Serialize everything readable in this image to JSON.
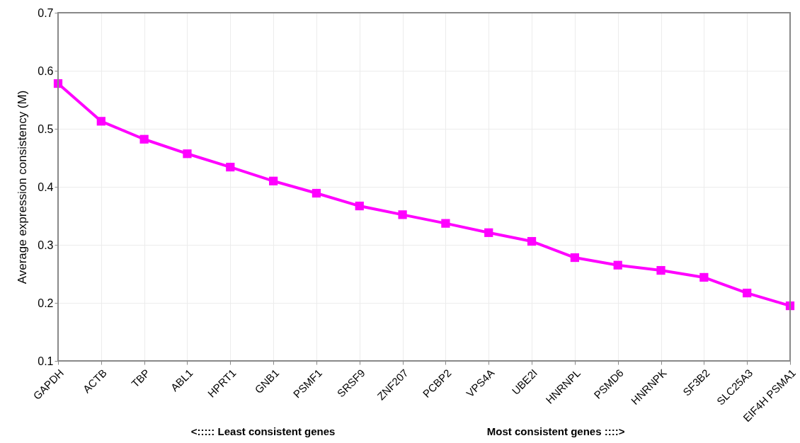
{
  "chart_data": {
    "type": "line",
    "ylabel": "Average expression consistency (M)",
    "categories": [
      "GAPDH",
      "ACTB",
      "TBP",
      "ABL1",
      "HPRT1",
      "GNB1",
      "PSMF1",
      "SRSF9",
      "ZNF207",
      "PCBP2",
      "VPS4A",
      "UBE2I",
      "HNRNPL",
      "PSMD6",
      "HNRNPK",
      "SF3B2",
      "SLC25A3",
      "EIF4H PSMA1"
    ],
    "series": [
      {
        "color": "#ff00ff",
        "values": [
          0.578,
          0.513,
          0.482,
          0.457,
          0.434,
          0.41,
          0.389,
          0.367,
          0.352,
          0.337,
          0.321,
          0.306,
          0.278,
          0.265,
          0.256,
          0.244,
          0.217,
          0.195
        ]
      }
    ],
    "ylim": [
      0.1,
      0.7
    ],
    "yticks": [
      0.1,
      0.2,
      0.3,
      0.4,
      0.5,
      0.6,
      0.7
    ],
    "grid": true,
    "marker": "square",
    "line_style": "solid",
    "annotations": [
      "<:::::  Least consistent genes",
      "Most consistent genes ::::>"
    ]
  }
}
